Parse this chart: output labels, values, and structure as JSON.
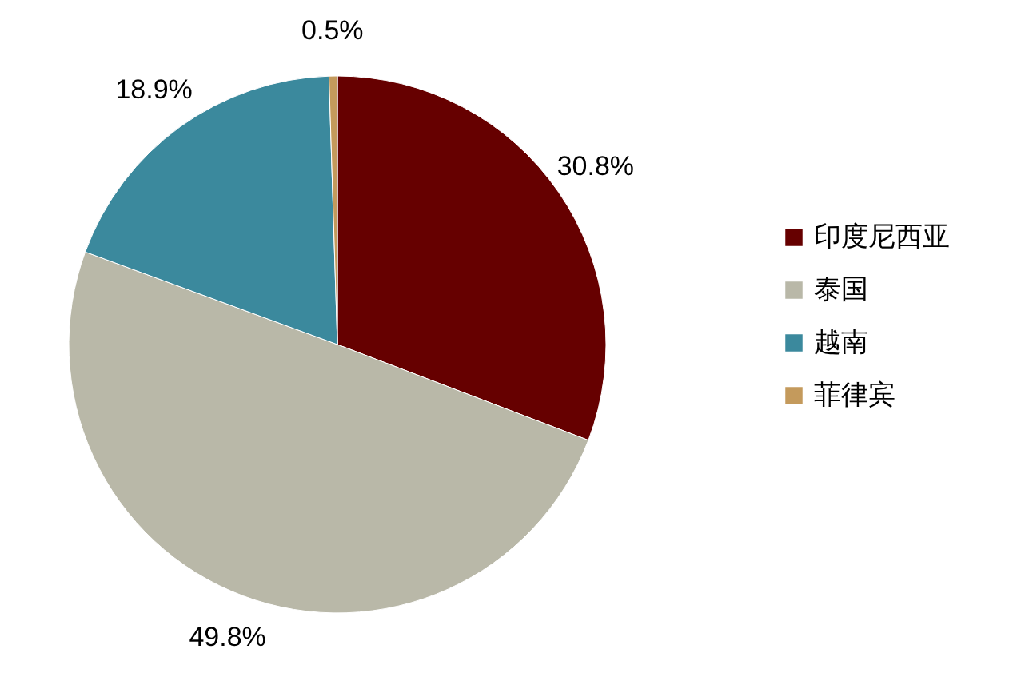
{
  "chart_data": {
    "type": "pie",
    "categories": [
      "印度尼西亚",
      "泰国",
      "越南",
      "菲律宾"
    ],
    "values": [
      30.8,
      49.8,
      18.9,
      0.5
    ],
    "colors": [
      "#660000",
      "#b9b8a8",
      "#3b899d",
      "#c49a5c"
    ],
    "value_labels": [
      "30.8%",
      "49.8%",
      "18.9%",
      "0.5%"
    ],
    "legend": "right"
  }
}
